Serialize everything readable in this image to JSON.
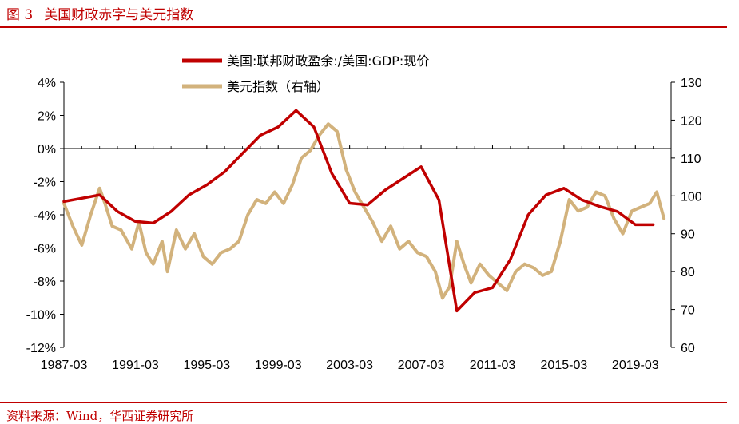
{
  "figure": {
    "number": "图 3",
    "title": "美国财政赤字与美元指数",
    "source": "资料来源：Wind，华西证券研究所"
  },
  "colors": {
    "accent": "#c00000",
    "deficit": "#c00000",
    "dollar": "#d2b27c"
  },
  "chart_data": {
    "type": "line",
    "legend_position": "top-center",
    "x_ticks": [
      "1987-03",
      "1991-03",
      "1995-03",
      "1999-03",
      "2003-03",
      "2007-03",
      "2011-03",
      "2015-03",
      "2019-03"
    ],
    "x_range": [
      1987.0,
      2021.0
    ],
    "y_left": {
      "range": [
        -12,
        4
      ],
      "ticks": [
        4,
        2,
        0,
        -2,
        -4,
        -6,
        -8,
        -10,
        -12
      ],
      "tick_labels": [
        "4%",
        "2%",
        "0%",
        "-2%",
        "-4%",
        "-6%",
        "-8%",
        "-10%",
        "-12%"
      ]
    },
    "y_right": {
      "range": [
        60,
        130
      ],
      "ticks": [
        130,
        120,
        110,
        100,
        90,
        80,
        70,
        60
      ],
      "tick_labels": [
        "130",
        "120",
        "110",
        "100",
        "90",
        "80",
        "70",
        "60"
      ]
    },
    "series": [
      {
        "name": "美国:联邦财政盈余:/美国:GDP:现价",
        "axis": "left",
        "x": [
          1987.0,
          1988.0,
          1989.0,
          1990.0,
          1991.0,
          1992.0,
          1993.0,
          1994.0,
          1995.0,
          1996.0,
          1997.0,
          1998.0,
          1999.0,
          2000.0,
          2001.0,
          2002.0,
          2003.0,
          2004.0,
          2005.0,
          2006.0,
          2007.0,
          2008.0,
          2009.0,
          2010.0,
          2011.0,
          2012.0,
          2013.0,
          2014.0,
          2015.0,
          2016.0,
          2017.0,
          2018.0,
          2019.0,
          2020.0
        ],
        "values": [
          -3.2,
          -3.0,
          -2.8,
          -3.8,
          -4.4,
          -4.5,
          -3.8,
          -2.8,
          -2.2,
          -1.4,
          -0.3,
          0.8,
          1.3,
          2.3,
          1.3,
          -1.5,
          -3.3,
          -3.4,
          -2.5,
          -1.8,
          -1.1,
          -3.1,
          -9.8,
          -8.7,
          -8.4,
          -6.7,
          -4.0,
          -2.8,
          -2.4,
          -3.1,
          -3.5,
          -3.8,
          -4.6,
          -4.6
        ]
      },
      {
        "name": "美元指数（右轴）",
        "axis": "right",
        "x": [
          1987.0,
          1987.5,
          1988.0,
          1988.5,
          1989.0,
          1989.3,
          1989.7,
          1990.2,
          1990.8,
          1991.2,
          1991.6,
          1992.0,
          1992.5,
          1992.8,
          1993.3,
          1993.8,
          1994.3,
          1994.8,
          1995.3,
          1995.8,
          1996.3,
          1996.8,
          1997.3,
          1997.8,
          1998.3,
          1998.8,
          1999.3,
          1999.8,
          2000.3,
          2000.8,
          2001.3,
          2001.8,
          2002.3,
          2002.8,
          2003.3,
          2003.8,
          2004.3,
          2004.8,
          2005.3,
          2005.8,
          2006.3,
          2006.8,
          2007.3,
          2007.8,
          2008.2,
          2008.6,
          2009.0,
          2009.4,
          2009.8,
          2010.3,
          2010.8,
          2011.3,
          2011.8,
          2012.3,
          2012.8,
          2013.3,
          2013.8,
          2014.3,
          2014.8,
          2015.3,
          2015.8,
          2016.3,
          2016.8,
          2017.3,
          2017.8,
          2018.3,
          2018.8,
          2019.3,
          2019.8,
          2020.2,
          2020.6
        ],
        "values": [
          98,
          92,
          87,
          95,
          102,
          98,
          92,
          91,
          86,
          93,
          85,
          82,
          88,
          80,
          91,
          86,
          90,
          84,
          82,
          85,
          86,
          88,
          95,
          99,
          98,
          101,
          98,
          103,
          110,
          112,
          116,
          119,
          117,
          107,
          101,
          97,
          93,
          88,
          92,
          86,
          88,
          85,
          84,
          80,
          73,
          76,
          88,
          82,
          77,
          82,
          79,
          77,
          75,
          80,
          82,
          81,
          79,
          80,
          88,
          99,
          96,
          97,
          101,
          100,
          94,
          90,
          96,
          97,
          98,
          101,
          94
        ]
      }
    ]
  }
}
